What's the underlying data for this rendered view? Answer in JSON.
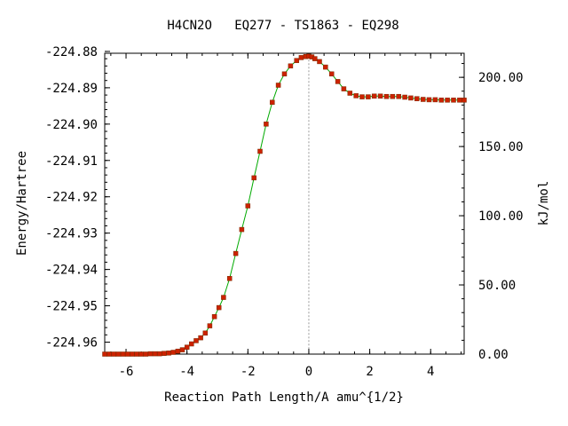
{
  "chart_data": {
    "type": "line",
    "title": "H4CN2O   EQ277 - TS1863 - EQ298",
    "xlabel": "Reaction Path Length/A amu^{1/2}",
    "ylabel": "Energy/Hartree",
    "y2label": "kJ/mol",
    "xlim": [
      -6.7,
      5.1
    ],
    "ylim": [
      -224.9633,
      -224.8805
    ],
    "y2lim": [
      0.0,
      217.4
    ],
    "x_ticks": [
      -6,
      -4,
      -2,
      0,
      2,
      4
    ],
    "x_tick_labels": [
      "-6",
      "-4",
      "-2",
      "0",
      "2",
      "4"
    ],
    "y_ticks": [
      -224.88,
      -224.89,
      -224.9,
      -224.91,
      -224.92,
      -224.93,
      -224.94,
      -224.95,
      -224.96
    ],
    "y_tick_labels": [
      "-224.88",
      "-224.89",
      "-224.90",
      "-224.91",
      "-224.92",
      "-224.93",
      "-224.94",
      "-224.95",
      "-224.96"
    ],
    "y2_ticks": [
      0,
      50,
      100,
      150,
      200
    ],
    "y2_tick_labels": [
      "0.00",
      "50.00",
      "100.00",
      "150.00",
      "200.00"
    ],
    "ts_x": 0.0,
    "line_color": "#00aa00",
    "marker_color": "#cc2200",
    "grid": false,
    "series": [
      {
        "x": [
          -6.7,
          -6.55,
          -6.4,
          -6.25,
          -6.1,
          -5.95,
          -5.8,
          -5.65,
          -5.5,
          -5.35,
          -5.2,
          -5.05,
          -4.9,
          -4.75,
          -4.6,
          -4.45,
          -4.3,
          -4.15,
          -4.0,
          -3.85,
          -3.7,
          -3.55,
          -3.4,
          -3.25,
          -3.1,
          -2.95,
          -2.8,
          -2.6,
          -2.4,
          -2.2,
          -2.0,
          -1.8,
          -1.6,
          -1.4,
          -1.2,
          -1.0,
          -0.8,
          -0.6,
          -0.4,
          -0.25,
          -0.1,
          0.0,
          0.1,
          0.2,
          0.35,
          0.55,
          0.75,
          0.95,
          1.15,
          1.35,
          1.55,
          1.75,
          1.95,
          2.15,
          2.35,
          2.55,
          2.75,
          2.95,
          3.15,
          3.35,
          3.55,
          3.75,
          3.95,
          4.15,
          4.35,
          4.55,
          4.75,
          4.95,
          5.1
        ],
        "y": [
          -224.9633,
          -224.9633,
          -224.9633,
          -224.9633,
          -224.9633,
          -224.9633,
          -224.9633,
          -224.9633,
          -224.9633,
          -224.9633,
          -224.9632,
          -224.9632,
          -224.9632,
          -224.9631,
          -224.963,
          -224.9628,
          -224.9625,
          -224.9621,
          -224.9614,
          -224.9605,
          -224.9596,
          -224.9588,
          -224.9575,
          -224.9555,
          -224.953,
          -224.9505,
          -224.9477,
          -224.9425,
          -224.9356,
          -224.929,
          -224.9225,
          -224.9148,
          -224.9075,
          -224.9,
          -224.894,
          -224.8893,
          -224.8862,
          -224.884,
          -224.8825,
          -224.8817,
          -224.8814,
          -224.8813,
          -224.8815,
          -224.882,
          -224.8828,
          -224.8843,
          -224.8862,
          -224.8883,
          -224.8903,
          -224.8915,
          -224.8922,
          -224.8925,
          -224.8925,
          -224.8923,
          -224.8923,
          -224.8924,
          -224.8924,
          -224.8924,
          -224.8926,
          -224.8928,
          -224.893,
          -224.8932,
          -224.8933,
          -224.8933,
          -224.8934,
          -224.8934,
          -224.8934,
          -224.8934,
          -224.8934
        ]
      }
    ]
  }
}
